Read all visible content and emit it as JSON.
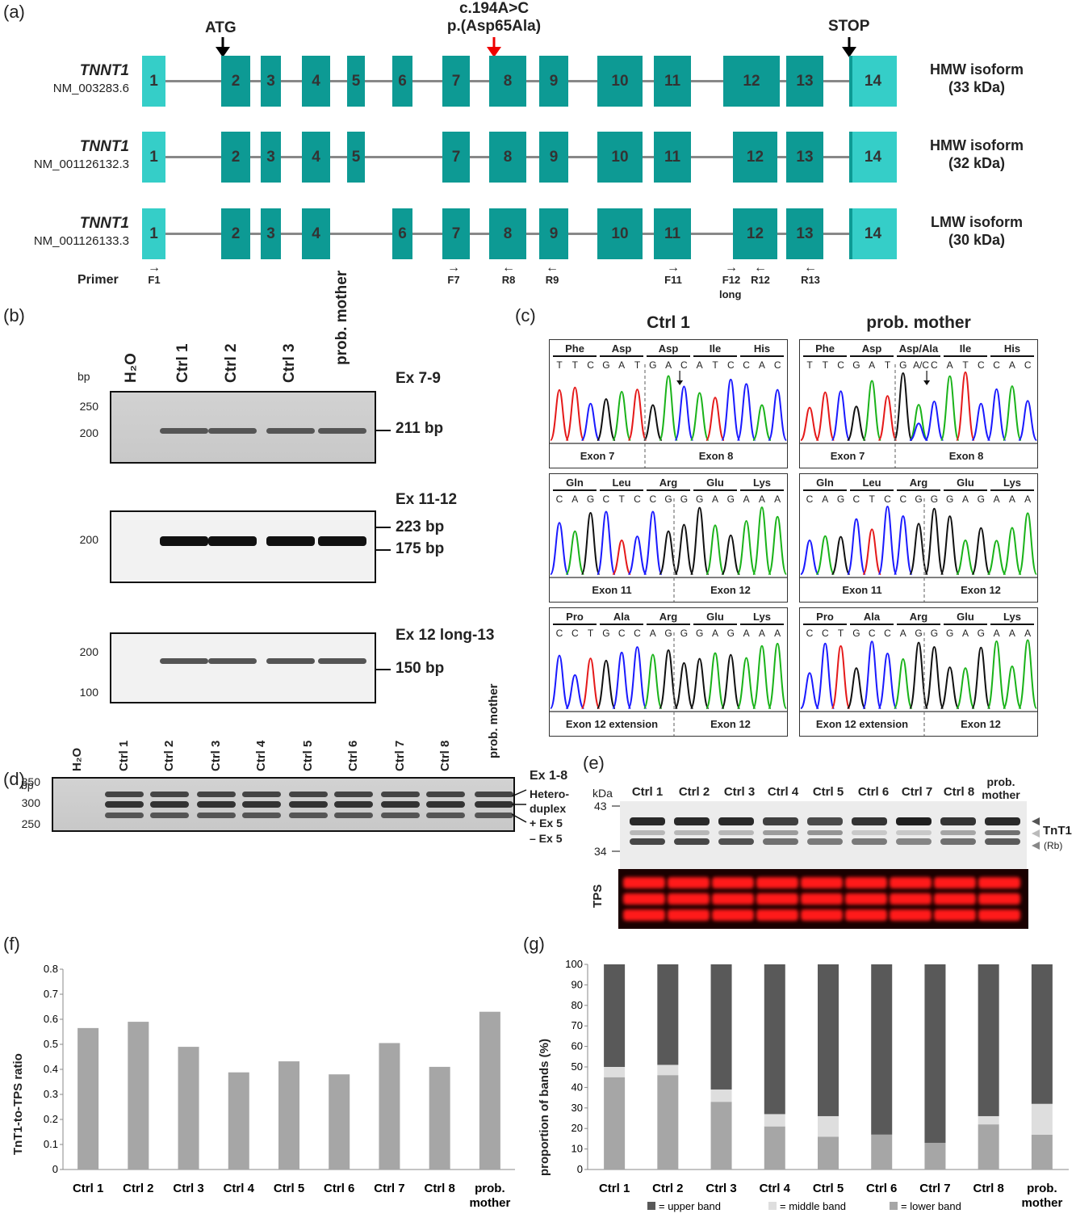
{
  "panels": {
    "a": "(a)",
    "b": "(b)",
    "c": "(c)",
    "d": "(d)",
    "e": "(e)",
    "f": "(f)",
    "g": "(g)"
  },
  "panel_a": {
    "atg": "ATG",
    "mutation_line1": "c.194A>C",
    "mutation_line2": "p.(Asp65Ala)",
    "stop": "STOP",
    "transcripts": [
      {
        "gene": "TNNT1",
        "accession": "NM_003283.6",
        "isoform_line1": "HMW isoform",
        "isoform_line2": "(33 kDa)"
      },
      {
        "gene": "TNNT1",
        "accession": "NM_001126132.3",
        "isoform_line1": "HMW isoform",
        "isoform_line2": "(32 kDa)"
      },
      {
        "gene": "TNNT1",
        "accession": "NM_001126133.3",
        "isoform_line1": "LMW isoform",
        "isoform_line2": "(30 kDa)"
      }
    ],
    "exon_numbers": [
      "1",
      "2",
      "3",
      "4",
      "5",
      "6",
      "7",
      "8",
      "9",
      "10",
      "11",
      "12",
      "13",
      "14"
    ],
    "primer_title": "Primer",
    "primers": [
      "F1",
      "F7",
      "R8",
      "R9",
      "F11",
      "F12",
      "R12",
      "R13"
    ],
    "primer_long": "long"
  },
  "panel_b": {
    "bp": "bp",
    "lanes": [
      "H₂O",
      "Ctrl 1",
      "Ctrl 2",
      "Ctrl 3",
      "prob. mother"
    ],
    "gels": [
      {
        "title": "Ex 7-9",
        "ladder": [
          "250",
          "200"
        ],
        "bands": [
          "211 bp"
        ]
      },
      {
        "title": "Ex 11-12",
        "ladder": [
          "200"
        ],
        "bands": [
          "223 bp",
          "175 bp"
        ]
      },
      {
        "title": "Ex 12 long-13",
        "ladder": [
          "200",
          "100"
        ],
        "bands": [
          "150 bp"
        ]
      }
    ]
  },
  "panel_c": {
    "col_titles": [
      "Ctrl 1",
      "prob. mother"
    ],
    "rows": [
      {
        "aa_left": [
          "Phe",
          "Asp",
          "Asp",
          "Ile",
          "His"
        ],
        "aa_right": [
          "Phe",
          "Asp",
          "Asp/Ala",
          "Ile",
          "His"
        ],
        "nt_left": [
          "T",
          "T",
          "C",
          "G",
          "A",
          "T",
          "G",
          "A",
          "C",
          "A",
          "T",
          "C",
          "C",
          "A",
          "C"
        ],
        "nt_right": [
          "T",
          "T",
          "C",
          "G",
          "A",
          "T",
          "G",
          "A/C",
          "C",
          "A",
          "T",
          "C",
          "C",
          "A",
          "C"
        ],
        "ex": [
          "Exon 7",
          "Exon 8"
        ]
      },
      {
        "aa_left": [
          "Gln",
          "Leu",
          "Arg",
          "Glu",
          "Lys"
        ],
        "aa_right": [
          "Gln",
          "Leu",
          "Arg",
          "Glu",
          "Lys"
        ],
        "nt_left": [
          "C",
          "A",
          "G",
          "C",
          "T",
          "C",
          "C",
          "G",
          "G",
          "G",
          "A",
          "G",
          "A",
          "A",
          "A"
        ],
        "nt_right": [
          "C",
          "A",
          "G",
          "C",
          "T",
          "C",
          "C",
          "G",
          "G",
          "G",
          "A",
          "G",
          "A",
          "A",
          "A"
        ],
        "ex": [
          "Exon 11",
          "Exon 12"
        ]
      },
      {
        "aa_left": [
          "Pro",
          "Ala",
          "Arg",
          "Glu",
          "Lys"
        ],
        "aa_right": [
          "Pro",
          "Ala",
          "Arg",
          "Glu",
          "Lys"
        ],
        "nt_left": [
          "C",
          "C",
          "T",
          "G",
          "C",
          "C",
          "A",
          "G",
          "G",
          "G",
          "A",
          "G",
          "A",
          "A",
          "A"
        ],
        "nt_right": [
          "C",
          "C",
          "T",
          "G",
          "C",
          "C",
          "A",
          "G",
          "G",
          "G",
          "A",
          "G",
          "A",
          "A",
          "A"
        ],
        "ex": [
          "Exon 12 extension",
          "Exon 12"
        ]
      }
    ]
  },
  "panel_d": {
    "bp": "bp",
    "title": "Ex 1-8",
    "lanes": [
      "H₂O",
      "Ctrl 1",
      "Ctrl 2",
      "Ctrl 3",
      "Ctrl 4",
      "Ctrl 5",
      "Ctrl 6",
      "Ctrl 7",
      "Ctrl 8",
      "prob. mother"
    ],
    "ladder": [
      "350",
      "300",
      "250"
    ],
    "band_labels": [
      "Hetero-",
      "duplex",
      "+ Ex 5",
      "– Ex 5"
    ]
  },
  "panel_e": {
    "kda": "kDa",
    "ladder": [
      "43",
      "34"
    ],
    "lanes": [
      "Ctrl 1",
      "Ctrl 2",
      "Ctrl 3",
      "Ctrl 4",
      "Ctrl 5",
      "Ctrl 6",
      "Ctrl 7",
      "Ctrl 8",
      "prob.",
      "mother"
    ],
    "tnt1": "TnT1",
    "rb": "(Rb)",
    "tps": "TPS",
    "colors": {
      "tps_red": "#ff1a1a",
      "blot_bg": "#ececec"
    }
  },
  "chart_data": [
    {
      "type": "bar",
      "panel": "f",
      "categories": [
        "Ctrl 1",
        "Ctrl 2",
        "Ctrl 3",
        "Ctrl 4",
        "Ctrl 5",
        "Ctrl 6",
        "Ctrl 7",
        "Ctrl 8",
        "prob. mother"
      ],
      "values": [
        0.565,
        0.59,
        0.49,
        0.388,
        0.432,
        0.38,
        0.505,
        0.41,
        0.63
      ],
      "ylabel": "TnT1-to-TPS ratio",
      "ylim": [
        0,
        0.8
      ],
      "yticks": [
        "0",
        "0.1",
        "0.2",
        "0.3",
        "0.4",
        "0.5",
        "0.6",
        "0.7",
        "0.8"
      ],
      "color": "#a6a6a6"
    },
    {
      "type": "bar",
      "stacked": true,
      "panel": "g",
      "categories": [
        "Ctrl 1",
        "Ctrl 2",
        "Ctrl 3",
        "Ctrl 4",
        "Ctrl 5",
        "Ctrl 6",
        "Ctrl 7",
        "Ctrl 8",
        "prob. mother"
      ],
      "series": [
        {
          "name": "= lower band",
          "values": [
            45,
            46,
            33,
            21,
            16,
            17,
            13,
            22,
            17
          ],
          "color": "#a6a6a6"
        },
        {
          "name": "= middle band",
          "values": [
            5,
            5,
            6,
            6,
            10,
            0,
            0,
            4,
            15
          ],
          "color": "#dedede"
        },
        {
          "name": "= upper band",
          "values": [
            50,
            49,
            61,
            73,
            74,
            83,
            87,
            74,
            68
          ],
          "color": "#595959"
        }
      ],
      "ylabel": "proportion of bands (%)",
      "ylim": [
        0,
        100
      ],
      "yticks": [
        "0",
        "10",
        "20",
        "30",
        "40",
        "50",
        "60",
        "70",
        "80",
        "90",
        "100"
      ],
      "legend": "bottom"
    }
  ]
}
